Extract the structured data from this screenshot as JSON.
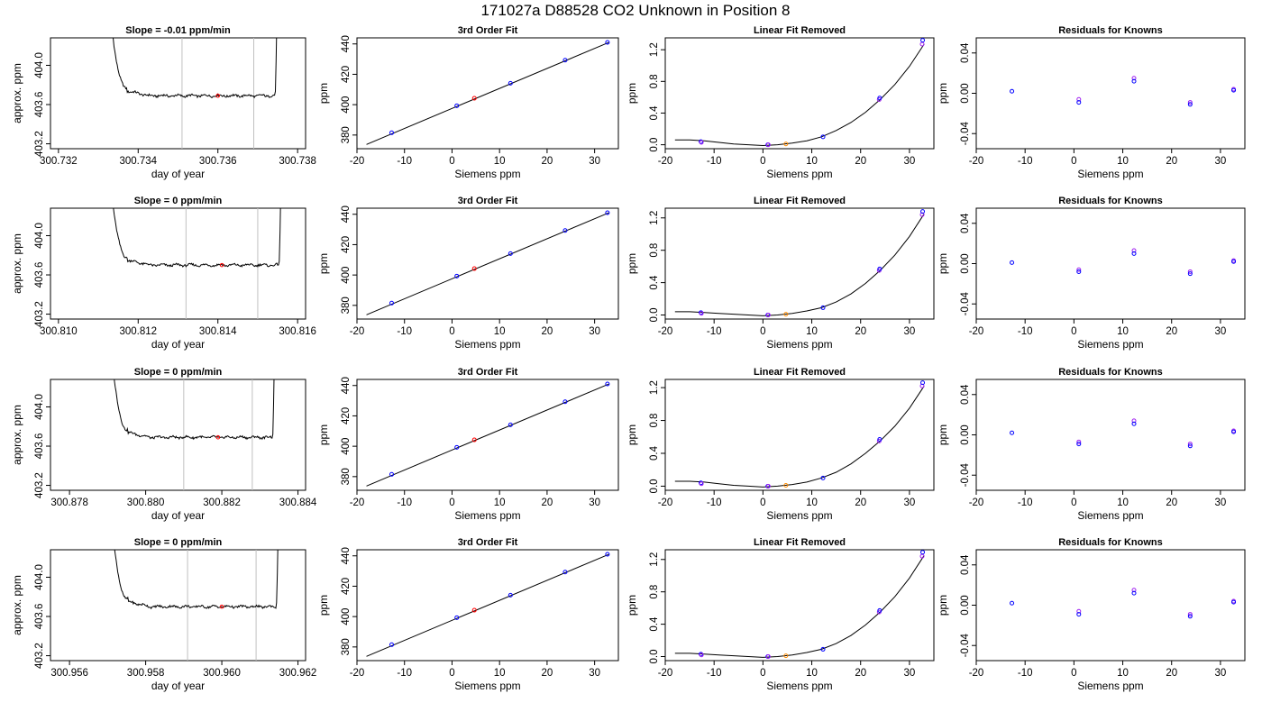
{
  "figure": {
    "title": "171027a      D88528   CO2 Unknown in Position  8"
  },
  "colors": {
    "line": "#000000",
    "vline": "#c0c0c0",
    "known_point": "#0000ff",
    "known_point_alt": "#a020f0",
    "unknown_point": "#ff0000",
    "unknown_point_alt": "#ff8c00"
  },
  "chart_data": [
    {
      "row": 1,
      "panel": "time",
      "type": "line",
      "title": "Slope =  -0.01  ppm/min",
      "xlabel": "day of year",
      "ylabel": "approx. ppm",
      "xlim": [
        300.7318,
        300.7382
      ],
      "ylim": [
        403.15,
        404.28
      ],
      "xticks": [
        300.732,
        300.734,
        300.736,
        300.738
      ],
      "xtick_labels": [
        "300.732",
        "300.734",
        "300.736",
        "300.738"
      ],
      "yticks": [
        403.2,
        403.6,
        404.0
      ],
      "ytick_labels": [
        "403.2",
        "403.6",
        "404.0"
      ],
      "trace_start": 300.7332,
      "trace_end": 300.7375,
      "plateau": 403.69,
      "vlines": [
        300.7351,
        300.7369
      ],
      "unknown_point": {
        "x": 300.736,
        "y": 403.69
      }
    },
    {
      "row": 1,
      "panel": "fit",
      "type": "scatter",
      "title": "3rd Order Fit",
      "xlabel": "Siemens ppm",
      "ylabel": "ppm",
      "xlim": [
        -20,
        35
      ],
      "ylim": [
        371,
        444
      ],
      "xticks": [
        -20,
        -10,
        0,
        10,
        20,
        30
      ],
      "xtick_labels": [
        "-20",
        "-10",
        "0",
        "10",
        "20",
        "30"
      ],
      "yticks": [
        380,
        400,
        420,
        440
      ],
      "ytick_labels": [
        "380",
        "400",
        "420",
        "440"
      ],
      "fit_line": {
        "x": [
          -18,
          33
        ],
        "y": [
          373.8,
          441.0
        ]
      },
      "knowns": {
        "x": [
          -12.7,
          1,
          12.3,
          23.8,
          32.7
        ],
        "y": [
          381.5,
          399.3,
          414.1,
          429.3,
          441.0
        ]
      },
      "unknowns": {
        "x": [
          4.7
        ],
        "y": [
          404.2
        ]
      }
    },
    {
      "row": 1,
      "panel": "linear_removed",
      "type": "scatter",
      "title": "Linear Fit Removed",
      "xlabel": "Siemens ppm",
      "ylabel": "ppm",
      "xlim": [
        -20,
        35
      ],
      "ylim": [
        -0.05,
        1.35
      ],
      "xticks": [
        -20,
        -10,
        0,
        10,
        20,
        30
      ],
      "xtick_labels": [
        "-20",
        "-10",
        "0",
        "10",
        "20",
        "30"
      ],
      "yticks": [
        0.0,
        0.4,
        0.8,
        1.2
      ],
      "ytick_labels": [
        "0.0",
        "0.4",
        "0.8",
        "1.2"
      ],
      "knowns": {
        "x": [
          -12.7,
          -12.6,
          1,
          1.1,
          12.3,
          23.8,
          23.9,
          32.6,
          32.7
        ],
        "y": [
          0.04,
          0.03,
          0.0,
          0.0,
          0.1,
          0.57,
          0.59,
          1.27,
          1.32
        ]
      },
      "unknowns": {
        "x": [
          4.7
        ],
        "y": [
          0.01
        ]
      },
      "curve": {
        "x": [
          -18,
          -15,
          -12,
          -9,
          -6,
          -3,
          0,
          3,
          6,
          9,
          12,
          15,
          18,
          21,
          24,
          27,
          30,
          33
        ],
        "y": [
          0.06,
          0.06,
          0.05,
          0.03,
          0.01,
          0.0,
          -0.01,
          0.0,
          0.02,
          0.05,
          0.1,
          0.18,
          0.28,
          0.41,
          0.57,
          0.76,
          0.99,
          1.27
        ]
      }
    },
    {
      "row": 1,
      "panel": "residuals",
      "type": "scatter",
      "title": "Residuals for Knowns",
      "xlabel": "Siemens ppm",
      "ylabel": "ppm",
      "xlim": [
        -20,
        35
      ],
      "ylim": [
        -0.055,
        0.055
      ],
      "xticks": [
        -20,
        -10,
        0,
        10,
        20,
        30
      ],
      "xtick_labels": [
        "-20",
        "-10",
        "0",
        "10",
        "20",
        "30"
      ],
      "yticks": [
        -0.04,
        0.0,
        0.04
      ],
      "ytick_labels": [
        "-0.04",
        "0.00",
        "0.04"
      ],
      "knowns": {
        "x": [
          -12.7,
          1,
          1,
          12.3,
          12.3,
          23.8,
          23.8,
          32.7,
          32.7
        ],
        "y": [
          0.002,
          -0.006,
          -0.009,
          0.015,
          0.012,
          -0.009,
          -0.011,
          0.004,
          0.003
        ]
      }
    },
    {
      "row": 2,
      "panel": "time",
      "type": "line",
      "title": "Slope =  0  ppm/min",
      "xlabel": "day of year",
      "ylabel": "approx. ppm",
      "xlim": [
        300.8098,
        300.8162
      ],
      "ylim": [
        403.15,
        404.28
      ],
      "xticks": [
        300.81,
        300.812,
        300.814,
        300.816
      ],
      "xtick_labels": [
        "300.810",
        "300.812",
        "300.814",
        "300.816"
      ],
      "yticks": [
        403.2,
        403.6,
        404.0
      ],
      "ytick_labels": [
        "403.2",
        "403.6",
        "404.0"
      ],
      "trace_start": 300.8112,
      "trace_end": 300.8156,
      "plateau": 403.7,
      "vlines": [
        300.8132,
        300.815
      ],
      "unknown_point": {
        "x": 300.8141,
        "y": 403.7
      }
    },
    {
      "row": 2,
      "panel": "fit",
      "type": "scatter",
      "title": "3rd Order Fit",
      "xlabel": "Siemens ppm",
      "ylabel": "ppm",
      "xlim": [
        -20,
        35
      ],
      "ylim": [
        371,
        444
      ],
      "xticks": [
        -20,
        -10,
        0,
        10,
        20,
        30
      ],
      "xtick_labels": [
        "-20",
        "-10",
        "0",
        "10",
        "20",
        "30"
      ],
      "yticks": [
        380,
        400,
        420,
        440
      ],
      "ytick_labels": [
        "380",
        "400",
        "420",
        "440"
      ],
      "fit_line": {
        "x": [
          -18,
          33
        ],
        "y": [
          373.8,
          441.0
        ]
      },
      "knowns": {
        "x": [
          -12.7,
          1,
          12.3,
          23.8,
          32.7
        ],
        "y": [
          381.5,
          399.3,
          414.1,
          429.3,
          441.0
        ]
      },
      "unknowns": {
        "x": [
          4.7
        ],
        "y": [
          404.2
        ]
      }
    },
    {
      "row": 2,
      "panel": "linear_removed",
      "type": "scatter",
      "title": "Linear Fit Removed",
      "xlabel": "Siemens ppm",
      "ylabel": "ppm",
      "xlim": [
        -20,
        35
      ],
      "ylim": [
        -0.05,
        1.32
      ],
      "xticks": [
        -20,
        -10,
        0,
        10,
        20,
        30
      ],
      "xtick_labels": [
        "-20",
        "-10",
        "0",
        "10",
        "20",
        "30"
      ],
      "yticks": [
        0.0,
        0.4,
        0.8,
        1.2
      ],
      "ytick_labels": [
        "0.0",
        "0.4",
        "0.8",
        "1.2"
      ],
      "knowns": {
        "x": [
          -12.7,
          -12.6,
          1,
          1.1,
          12.3,
          23.8,
          23.9,
          32.6,
          32.7
        ],
        "y": [
          0.03,
          0.02,
          0.0,
          0.0,
          0.09,
          0.55,
          0.57,
          1.24,
          1.28
        ]
      },
      "unknowns": {
        "x": [
          4.7
        ],
        "y": [
          0.01
        ]
      },
      "curve": {
        "x": [
          -18,
          -15,
          -12,
          -9,
          -6,
          -3,
          0,
          3,
          6,
          9,
          12,
          15,
          18,
          21,
          24,
          27,
          30,
          33
        ],
        "y": [
          0.04,
          0.04,
          0.03,
          0.02,
          0.01,
          0.0,
          -0.01,
          0.0,
          0.02,
          0.05,
          0.09,
          0.16,
          0.26,
          0.39,
          0.55,
          0.74,
          0.97,
          1.25
        ]
      }
    },
    {
      "row": 2,
      "panel": "residuals",
      "type": "scatter",
      "title": "Residuals for Knowns",
      "xlabel": "Siemens ppm",
      "ylabel": "ppm",
      "xlim": [
        -20,
        35
      ],
      "ylim": [
        -0.055,
        0.055
      ],
      "xticks": [
        -20,
        -10,
        0,
        10,
        20,
        30
      ],
      "xtick_labels": [
        "-20",
        "-10",
        "0",
        "10",
        "20",
        "30"
      ],
      "yticks": [
        -0.04,
        0.0,
        0.04
      ],
      "ytick_labels": [
        "-0.04",
        "0.00",
        "0.04"
      ],
      "knowns": {
        "x": [
          -12.7,
          1,
          1,
          12.3,
          12.3,
          23.8,
          23.8,
          32.7,
          32.7
        ],
        "y": [
          0.001,
          -0.006,
          -0.008,
          0.013,
          0.01,
          -0.008,
          -0.01,
          0.003,
          0.002
        ]
      }
    },
    {
      "row": 3,
      "panel": "time",
      "type": "line",
      "title": "Slope =  0  ppm/min",
      "xlabel": "day of year",
      "ylabel": "approx. ppm",
      "xlim": [
        300.8775,
        300.8842
      ],
      "ylim": [
        403.15,
        404.28
      ],
      "xticks": [
        300.878,
        300.88,
        300.882,
        300.884
      ],
      "xtick_labels": [
        "300.878",
        "300.880",
        "300.882",
        "300.884"
      ],
      "yticks": [
        403.2,
        403.6,
        404.0
      ],
      "ytick_labels": [
        "403.2",
        "403.6",
        "404.0"
      ],
      "trace_start": 300.879,
      "trace_end": 300.8834,
      "plateau": 403.69,
      "vlines": [
        300.881,
        300.8828
      ],
      "unknown_point": {
        "x": 300.8819,
        "y": 403.69
      }
    },
    {
      "row": 3,
      "panel": "fit",
      "type": "scatter",
      "title": "3rd Order Fit",
      "xlabel": "Siemens ppm",
      "ylabel": "ppm",
      "xlim": [
        -20,
        35
      ],
      "ylim": [
        371,
        444
      ],
      "xticks": [
        -20,
        -10,
        0,
        10,
        20,
        30
      ],
      "xtick_labels": [
        "-20",
        "-10",
        "0",
        "10",
        "20",
        "30"
      ],
      "yticks": [
        380,
        400,
        420,
        440
      ],
      "ytick_labels": [
        "380",
        "400",
        "420",
        "440"
      ],
      "fit_line": {
        "x": [
          -18,
          33
        ],
        "y": [
          373.8,
          441.0
        ]
      },
      "knowns": {
        "x": [
          -12.7,
          1,
          12.3,
          23.8,
          32.7
        ],
        "y": [
          381.5,
          399.3,
          414.1,
          429.3,
          441.0
        ]
      },
      "unknowns": {
        "x": [
          4.7
        ],
        "y": [
          404.2
        ]
      }
    },
    {
      "row": 3,
      "panel": "linear_removed",
      "type": "scatter",
      "title": "Linear Fit Removed",
      "xlabel": "Siemens ppm",
      "ylabel": "ppm",
      "xlim": [
        -20,
        35
      ],
      "ylim": [
        -0.05,
        1.3
      ],
      "xticks": [
        -20,
        -10,
        0,
        10,
        20,
        30
      ],
      "xtick_labels": [
        "-20",
        "-10",
        "0",
        "10",
        "20",
        "30"
      ],
      "yticks": [
        0.0,
        0.4,
        0.8,
        1.2
      ],
      "ytick_labels": [
        "0.0",
        "0.4",
        "0.8",
        "1.2"
      ],
      "knowns": {
        "x": [
          -12.7,
          -12.6,
          1,
          1.1,
          12.3,
          23.8,
          23.9,
          32.6,
          32.7
        ],
        "y": [
          0.04,
          0.03,
          0.0,
          0.0,
          0.1,
          0.55,
          0.57,
          1.22,
          1.26
        ]
      },
      "unknowns": {
        "x": [
          4.7
        ],
        "y": [
          0.01
        ]
      },
      "curve": {
        "x": [
          -18,
          -15,
          -12,
          -9,
          -6,
          -3,
          0,
          3,
          6,
          9,
          12,
          15,
          18,
          21,
          24,
          27,
          30,
          33
        ],
        "y": [
          0.06,
          0.06,
          0.05,
          0.03,
          0.01,
          0.0,
          -0.01,
          0.0,
          0.02,
          0.05,
          0.1,
          0.17,
          0.27,
          0.4,
          0.55,
          0.73,
          0.95,
          1.22
        ]
      }
    },
    {
      "row": 3,
      "panel": "residuals",
      "type": "scatter",
      "title": "Residuals for Knowns",
      "xlabel": "Siemens ppm",
      "ylabel": "ppm",
      "xlim": [
        -20,
        35
      ],
      "ylim": [
        -0.055,
        0.055
      ],
      "xticks": [
        -20,
        -10,
        0,
        10,
        20,
        30
      ],
      "xtick_labels": [
        "-20",
        "-10",
        "0",
        "10",
        "20",
        "30"
      ],
      "yticks": [
        -0.04,
        0.0,
        0.04
      ],
      "ytick_labels": [
        "-0.04",
        "0.00",
        "0.04"
      ],
      "knowns": {
        "x": [
          -12.7,
          1,
          1,
          12.3,
          12.3,
          23.8,
          23.8,
          32.7,
          32.7
        ],
        "y": [
          0.002,
          -0.007,
          -0.009,
          0.014,
          0.011,
          -0.009,
          -0.011,
          0.004,
          0.003
        ]
      }
    },
    {
      "row": 4,
      "panel": "time",
      "type": "line",
      "title": "Slope =  0  ppm/min",
      "xlabel": "day of year",
      "ylabel": "approx. ppm",
      "xlim": [
        300.9555,
        300.9622
      ],
      "ylim": [
        403.15,
        404.28
      ],
      "xticks": [
        300.956,
        300.958,
        300.96,
        300.962
      ],
      "xtick_labels": [
        "300.956",
        "300.958",
        "300.960",
        "300.962"
      ],
      "yticks": [
        403.2,
        403.6,
        404.0
      ],
      "ytick_labels": [
        "403.2",
        "403.6",
        "404.0"
      ],
      "trace_start": 300.957,
      "trace_end": 300.9615,
      "plateau": 403.7,
      "vlines": [
        300.9591,
        300.9609
      ],
      "unknown_point": {
        "x": 300.96,
        "y": 403.7
      }
    },
    {
      "row": 4,
      "panel": "fit",
      "type": "scatter",
      "title": "3rd Order Fit",
      "xlabel": "Siemens ppm",
      "ylabel": "ppm",
      "xlim": [
        -20,
        35
      ],
      "ylim": [
        371,
        444
      ],
      "xticks": [
        -20,
        -10,
        0,
        10,
        20,
        30
      ],
      "xtick_labels": [
        "-20",
        "-10",
        "0",
        "10",
        "20",
        "30"
      ],
      "yticks": [
        380,
        400,
        420,
        440
      ],
      "ytick_labels": [
        "380",
        "400",
        "420",
        "440"
      ],
      "fit_line": {
        "x": [
          -18,
          33
        ],
        "y": [
          373.8,
          441.0
        ]
      },
      "knowns": {
        "x": [
          -12.7,
          1,
          12.3,
          23.8,
          32.7
        ],
        "y": [
          381.5,
          399.3,
          414.1,
          429.3,
          441.0
        ]
      },
      "unknowns": {
        "x": [
          4.7
        ],
        "y": [
          404.2
        ]
      }
    },
    {
      "row": 4,
      "panel": "linear_removed",
      "type": "scatter",
      "title": "Linear Fit Removed",
      "xlabel": "Siemens ppm",
      "ylabel": "ppm",
      "xlim": [
        -20,
        35
      ],
      "ylim": [
        -0.05,
        1.32
      ],
      "xticks": [
        -20,
        -10,
        0,
        10,
        20,
        30
      ],
      "xtick_labels": [
        "-20",
        "-10",
        "0",
        "10",
        "20",
        "30"
      ],
      "yticks": [
        0.0,
        0.4,
        0.8,
        1.2
      ],
      "ytick_labels": [
        "0.0",
        "0.4",
        "0.8",
        "1.2"
      ],
      "knowns": {
        "x": [
          -12.7,
          -12.6,
          1,
          1.1,
          12.3,
          23.8,
          23.9,
          32.6,
          32.7
        ],
        "y": [
          0.03,
          0.02,
          0.0,
          0.0,
          0.09,
          0.55,
          0.57,
          1.24,
          1.29
        ]
      },
      "unknowns": {
        "x": [
          4.7
        ],
        "y": [
          0.01
        ]
      },
      "curve": {
        "x": [
          -18,
          -15,
          -12,
          -9,
          -6,
          -3,
          0,
          3,
          6,
          9,
          12,
          15,
          18,
          21,
          24,
          27,
          30,
          33
        ],
        "y": [
          0.04,
          0.04,
          0.03,
          0.02,
          0.01,
          0.0,
          -0.01,
          0.0,
          0.02,
          0.05,
          0.09,
          0.16,
          0.26,
          0.39,
          0.55,
          0.74,
          0.97,
          1.25
        ]
      }
    },
    {
      "row": 4,
      "panel": "residuals",
      "type": "scatter",
      "title": "Residuals for Knowns",
      "xlabel": "Siemens ppm",
      "ylabel": "ppm",
      "xlim": [
        -20,
        35
      ],
      "ylim": [
        -0.055,
        0.055
      ],
      "xticks": [
        -20,
        -10,
        0,
        10,
        20,
        30
      ],
      "xtick_labels": [
        "-20",
        "-10",
        "0",
        "10",
        "20",
        "30"
      ],
      "yticks": [
        -0.04,
        0.0,
        0.04
      ],
      "ytick_labels": [
        "-0.04",
        "0.00",
        "0.04"
      ],
      "knowns": {
        "x": [
          -12.7,
          1,
          1,
          12.3,
          12.3,
          23.8,
          23.8,
          32.7,
          32.7
        ],
        "y": [
          0.002,
          -0.006,
          -0.009,
          0.015,
          0.012,
          -0.009,
          -0.011,
          0.004,
          0.003
        ]
      }
    }
  ]
}
